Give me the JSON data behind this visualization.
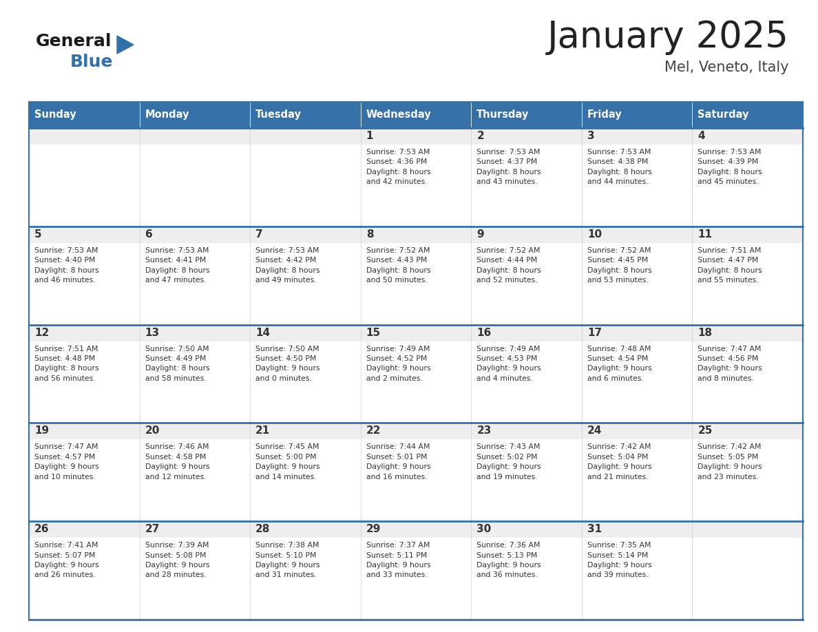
{
  "title": "January 2025",
  "subtitle": "Mel, Veneto, Italy",
  "header_color": "#3570a8",
  "header_text_color": "#ffffff",
  "cell_bg_top": "#eeeeee",
  "cell_bg_main": "#ffffff",
  "border_color": "#3570a8",
  "text_color": "#333333",
  "day_number_color": "#333333",
  "days_of_week": [
    "Sunday",
    "Monday",
    "Tuesday",
    "Wednesday",
    "Thursday",
    "Friday",
    "Saturday"
  ],
  "calendar_data": [
    [
      {
        "day": "",
        "info": ""
      },
      {
        "day": "",
        "info": ""
      },
      {
        "day": "",
        "info": ""
      },
      {
        "day": "1",
        "info": "Sunrise: 7:53 AM\nSunset: 4:36 PM\nDaylight: 8 hours\nand 42 minutes."
      },
      {
        "day": "2",
        "info": "Sunrise: 7:53 AM\nSunset: 4:37 PM\nDaylight: 8 hours\nand 43 minutes."
      },
      {
        "day": "3",
        "info": "Sunrise: 7:53 AM\nSunset: 4:38 PM\nDaylight: 8 hours\nand 44 minutes."
      },
      {
        "day": "4",
        "info": "Sunrise: 7:53 AM\nSunset: 4:39 PM\nDaylight: 8 hours\nand 45 minutes."
      }
    ],
    [
      {
        "day": "5",
        "info": "Sunrise: 7:53 AM\nSunset: 4:40 PM\nDaylight: 8 hours\nand 46 minutes."
      },
      {
        "day": "6",
        "info": "Sunrise: 7:53 AM\nSunset: 4:41 PM\nDaylight: 8 hours\nand 47 minutes."
      },
      {
        "day": "7",
        "info": "Sunrise: 7:53 AM\nSunset: 4:42 PM\nDaylight: 8 hours\nand 49 minutes."
      },
      {
        "day": "8",
        "info": "Sunrise: 7:52 AM\nSunset: 4:43 PM\nDaylight: 8 hours\nand 50 minutes."
      },
      {
        "day": "9",
        "info": "Sunrise: 7:52 AM\nSunset: 4:44 PM\nDaylight: 8 hours\nand 52 minutes."
      },
      {
        "day": "10",
        "info": "Sunrise: 7:52 AM\nSunset: 4:45 PM\nDaylight: 8 hours\nand 53 minutes."
      },
      {
        "day": "11",
        "info": "Sunrise: 7:51 AM\nSunset: 4:47 PM\nDaylight: 8 hours\nand 55 minutes."
      }
    ],
    [
      {
        "day": "12",
        "info": "Sunrise: 7:51 AM\nSunset: 4:48 PM\nDaylight: 8 hours\nand 56 minutes."
      },
      {
        "day": "13",
        "info": "Sunrise: 7:50 AM\nSunset: 4:49 PM\nDaylight: 8 hours\nand 58 minutes."
      },
      {
        "day": "14",
        "info": "Sunrise: 7:50 AM\nSunset: 4:50 PM\nDaylight: 9 hours\nand 0 minutes."
      },
      {
        "day": "15",
        "info": "Sunrise: 7:49 AM\nSunset: 4:52 PM\nDaylight: 9 hours\nand 2 minutes."
      },
      {
        "day": "16",
        "info": "Sunrise: 7:49 AM\nSunset: 4:53 PM\nDaylight: 9 hours\nand 4 minutes."
      },
      {
        "day": "17",
        "info": "Sunrise: 7:48 AM\nSunset: 4:54 PM\nDaylight: 9 hours\nand 6 minutes."
      },
      {
        "day": "18",
        "info": "Sunrise: 7:47 AM\nSunset: 4:56 PM\nDaylight: 9 hours\nand 8 minutes."
      }
    ],
    [
      {
        "day": "19",
        "info": "Sunrise: 7:47 AM\nSunset: 4:57 PM\nDaylight: 9 hours\nand 10 minutes."
      },
      {
        "day": "20",
        "info": "Sunrise: 7:46 AM\nSunset: 4:58 PM\nDaylight: 9 hours\nand 12 minutes."
      },
      {
        "day": "21",
        "info": "Sunrise: 7:45 AM\nSunset: 5:00 PM\nDaylight: 9 hours\nand 14 minutes."
      },
      {
        "day": "22",
        "info": "Sunrise: 7:44 AM\nSunset: 5:01 PM\nDaylight: 9 hours\nand 16 minutes."
      },
      {
        "day": "23",
        "info": "Sunrise: 7:43 AM\nSunset: 5:02 PM\nDaylight: 9 hours\nand 19 minutes."
      },
      {
        "day": "24",
        "info": "Sunrise: 7:42 AM\nSunset: 5:04 PM\nDaylight: 9 hours\nand 21 minutes."
      },
      {
        "day": "25",
        "info": "Sunrise: 7:42 AM\nSunset: 5:05 PM\nDaylight: 9 hours\nand 23 minutes."
      }
    ],
    [
      {
        "day": "26",
        "info": "Sunrise: 7:41 AM\nSunset: 5:07 PM\nDaylight: 9 hours\nand 26 minutes."
      },
      {
        "day": "27",
        "info": "Sunrise: 7:39 AM\nSunset: 5:08 PM\nDaylight: 9 hours\nand 28 minutes."
      },
      {
        "day": "28",
        "info": "Sunrise: 7:38 AM\nSunset: 5:10 PM\nDaylight: 9 hours\nand 31 minutes."
      },
      {
        "day": "29",
        "info": "Sunrise: 7:37 AM\nSunset: 5:11 PM\nDaylight: 9 hours\nand 33 minutes."
      },
      {
        "day": "30",
        "info": "Sunrise: 7:36 AM\nSunset: 5:13 PM\nDaylight: 9 hours\nand 36 minutes."
      },
      {
        "day": "31",
        "info": "Sunrise: 7:35 AM\nSunset: 5:14 PM\nDaylight: 9 hours\nand 39 minutes."
      },
      {
        "day": "",
        "info": ""
      }
    ]
  ],
  "logo_color_general": "#1a1a1a",
  "logo_color_blue": "#3570a8",
  "logo_triangle_color": "#3570a8",
  "fig_width": 11.88,
  "fig_height": 9.18,
  "dpi": 100
}
